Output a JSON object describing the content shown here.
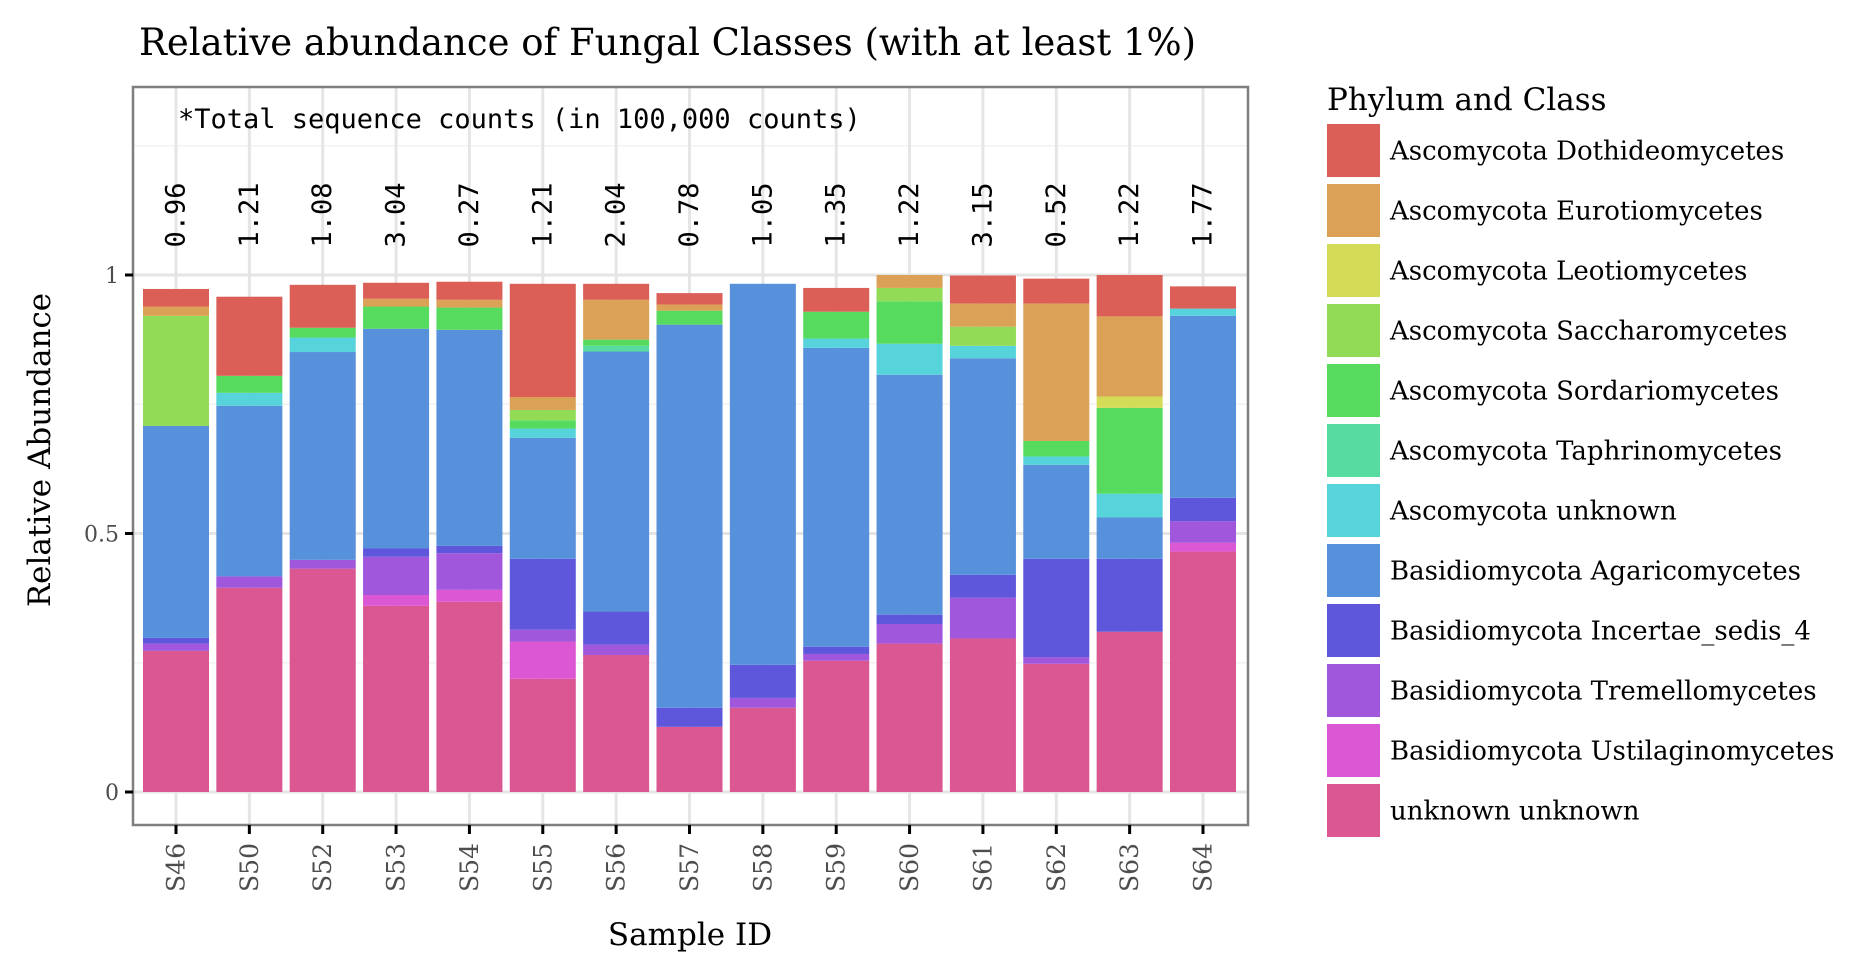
{
  "chart_data": {
    "type": "bar",
    "stacked": true,
    "title": "Relative abundance of Fungal Classes (with at least 1%)",
    "xlabel": "Sample ID",
    "ylabel": "Relative Abundance",
    "ylim": [
      -0.064,
      1.364
    ],
    "yticks": [
      0,
      0.5,
      1
    ],
    "ytick_labels": [
      "0",
      "0.5",
      "1"
    ],
    "grid": true,
    "annotation": "*Total sequence counts (in 100,000 counts)",
    "legend": {
      "title": "Phylum and Class",
      "placement": "right"
    },
    "categories": [
      "S46",
      "S50",
      "S52",
      "S53",
      "S54",
      "S55",
      "S56",
      "S57",
      "S58",
      "S59",
      "S60",
      "S61",
      "S62",
      "S63",
      "S64"
    ],
    "total_counts": [
      "0.96",
      "1.21",
      "1.08",
      "3.04",
      "0.27",
      "1.21",
      "2.04",
      "0.78",
      "1.05",
      "1.35",
      "1.22",
      "3.15",
      "0.52",
      "1.22",
      "1.77"
    ],
    "stack_order_bottom_to_top": [
      "unknown unknown",
      "Basidiomycota Ustilaginomycetes",
      "Basidiomycota Tremellomycetes",
      "Basidiomycota Incertae_sedis_4",
      "Basidiomycota Agaricomycetes",
      "Ascomycota unknown",
      "Ascomycota Taphrinomycetes",
      "Ascomycota Sordariomycetes",
      "Ascomycota Saccharomycetes",
      "Ascomycota Leotiomycetes",
      "Ascomycota Eurotiomycetes",
      "Ascomycota Dothideomycetes"
    ],
    "series": [
      {
        "name": "Ascomycota Dothideomycetes",
        "color": "#DB5F57",
        "values": [
          0.034,
          0.153,
          0.083,
          0.031,
          0.035,
          0.219,
          0.031,
          0.022,
          0,
          0.046,
          0,
          0.054,
          0.048,
          0.08,
          0.043
        ]
      },
      {
        "name": "Ascomycota Eurotiomycetes",
        "color": "#DBA157",
        "values": [
          0.018,
          0,
          0,
          0.015,
          0.015,
          0.025,
          0.077,
          0.012,
          0,
          0,
          0.025,
          0.045,
          0.266,
          0.155,
          0
        ]
      },
      {
        "name": "Ascomycota Leotiomycetes",
        "color": "#D3DB57",
        "values": [
          0,
          0,
          0,
          0,
          0,
          0,
          0,
          0,
          0,
          0,
          0,
          0,
          0,
          0.022,
          0
        ]
      },
      {
        "name": "Ascomycota Saccharomycetes",
        "color": "#91DB57",
        "values": [
          0.213,
          0,
          0,
          0,
          0,
          0.02,
          0,
          0,
          0,
          0,
          0.026,
          0.037,
          0,
          0,
          0
        ]
      },
      {
        "name": "Ascomycota Sordariomycetes",
        "color": "#57DB5F",
        "values": [
          0,
          0.033,
          0.019,
          0.043,
          0.043,
          0.016,
          0.012,
          0.027,
          0,
          0.052,
          0.082,
          0,
          0.03,
          0.166,
          0
        ]
      },
      {
        "name": "Ascomycota Taphrinomycetes",
        "color": "#57DBA1",
        "values": [
          0,
          0,
          0,
          0,
          0,
          0,
          0.011,
          0,
          0,
          0,
          0,
          0,
          0,
          0,
          0
        ]
      },
      {
        "name": "Ascomycota unknown",
        "color": "#57D3DB",
        "values": [
          0,
          0.025,
          0.028,
          0,
          0,
          0.018,
          0,
          0,
          0,
          0.018,
          0.06,
          0.024,
          0.016,
          0.046,
          0.014
        ]
      },
      {
        "name": "Basidiomycota Agaricomycetes",
        "color": "#5791DB",
        "values": [
          0.41,
          0.33,
          0.402,
          0.425,
          0.418,
          0.234,
          0.503,
          0.741,
          0.737,
          0.578,
          0.464,
          0.419,
          0.182,
          0.08,
          0.352
        ]
      },
      {
        "name": "Basidiomycota Incertae_sedis_4",
        "color": "#5F57DB",
        "values": [
          0.011,
          0,
          0,
          0.016,
          0.014,
          0.137,
          0.064,
          0.037,
          0.064,
          0.014,
          0.018,
          0.044,
          0.19,
          0.141,
          0.045
        ]
      },
      {
        "name": "Basidiomycota Tremellomycetes",
        "color": "#A157DB",
        "values": [
          0.014,
          0.022,
          0.017,
          0.074,
          0.071,
          0.023,
          0.02,
          0,
          0.019,
          0.013,
          0.038,
          0.079,
          0.013,
          0,
          0.042
        ]
      },
      {
        "name": "Basidiomycota Ustilaginomycetes",
        "color": "#DB57D3",
        "values": [
          0,
          0,
          0,
          0.021,
          0.023,
          0.072,
          0,
          0,
          0,
          0,
          0,
          0,
          0,
          0,
          0.017
        ]
      },
      {
        "name": "unknown unknown",
        "color": "#DB5791",
        "values": [
          0.273,
          0.395,
          0.432,
          0.36,
          0.368,
          0.219,
          0.265,
          0.126,
          0.163,
          0.254,
          0.287,
          0.297,
          0.248,
          0.31,
          0.465
        ]
      }
    ]
  }
}
